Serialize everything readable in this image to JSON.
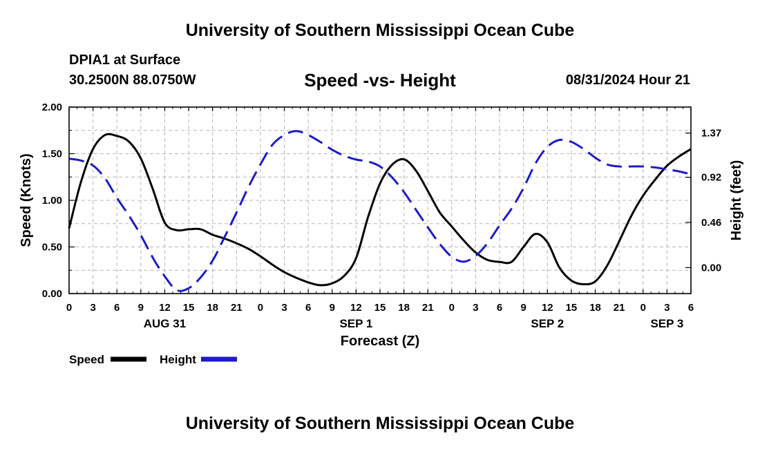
{
  "header": {
    "title": "University of Southern Mississippi Ocean Cube",
    "station": "DPIA1 at Surface",
    "coords": "30.2500N  88.0750W",
    "chart_title": "Speed -vs- Height",
    "datetime": "08/31/2024 Hour 21",
    "footer_title": "University of Southern Mississippi Ocean Cube"
  },
  "colors": {
    "speed": "#000000",
    "height": "#1c1cc8",
    "grid": "#b4b4b4"
  },
  "chart_data": {
    "type": "line",
    "title": "Speed -vs- Height",
    "xlabel": "Forecast (Z)",
    "ylabel": "Speed (Knots)",
    "y2label": "Height (feet)",
    "x_range": [
      0,
      78
    ],
    "ylim": [
      0,
      2.0
    ],
    "y2lim": [
      -0.265,
      1.635
    ],
    "grid": true,
    "x_tick_values": [
      0,
      3,
      6,
      9,
      12,
      15,
      18,
      21,
      24,
      27,
      30,
      33,
      36,
      39,
      42,
      45,
      48,
      51,
      54,
      57,
      60,
      63,
      66,
      69,
      72,
      75,
      78
    ],
    "x_tick_labels": [
      "0",
      "3",
      "6",
      "9",
      "12",
      "15",
      "18",
      "21",
      "0",
      "3",
      "6",
      "9",
      "12",
      "15",
      "18",
      "21",
      "0",
      "3",
      "6",
      "9",
      "12",
      "15",
      "18",
      "21",
      "0",
      "3",
      "6"
    ],
    "date_labels": [
      {
        "x": 12,
        "label": "AUG 31"
      },
      {
        "x": 36,
        "label": "SEP 1"
      },
      {
        "x": 60,
        "label": "SEP 2"
      },
      {
        "x": 75,
        "label": "SEP 3"
      }
    ],
    "y_ticks": [
      {
        "value": 0,
        "label": "0.00"
      },
      {
        "value": 0.5,
        "label": "0.50"
      },
      {
        "value": 1.0,
        "label": "1.00"
      },
      {
        "value": 1.5,
        "label": "1.50"
      },
      {
        "value": 2.0,
        "label": "2.00"
      }
    ],
    "y2_ticks": [
      {
        "value": 0.0,
        "label": "0.00"
      },
      {
        "value": 0.46,
        "label": "0.46"
      },
      {
        "value": 0.92,
        "label": "0.92"
      },
      {
        "value": 1.37,
        "label": "1.37"
      }
    ],
    "legend": [
      {
        "label": "Speed",
        "series": "speed"
      },
      {
        "label": "Height",
        "series": "height"
      }
    ],
    "series": [
      {
        "name": "Speed",
        "axis": "left",
        "style": "solid",
        "x": [
          0,
          1.5,
          3,
          4.5,
          6,
          7.5,
          9,
          10.5,
          12,
          13.5,
          15,
          16.5,
          18,
          19.5,
          21,
          22.5,
          24,
          25.5,
          27,
          28.5,
          30,
          31.5,
          33,
          34.5,
          36,
          37.5,
          39,
          40.5,
          42,
          43.5,
          45,
          46.5,
          48,
          49.5,
          51,
          52.5,
          54,
          55.5,
          57,
          58.5,
          60,
          61.5,
          63,
          64.5,
          66,
          67.5,
          69,
          70.5,
          72,
          73.5,
          75,
          76.5,
          78
        ],
        "values": [
          0.7,
          1.2,
          1.55,
          1.7,
          1.69,
          1.63,
          1.45,
          1.12,
          0.76,
          0.68,
          0.69,
          0.69,
          0.63,
          0.59,
          0.54,
          0.48,
          0.4,
          0.31,
          0.23,
          0.17,
          0.12,
          0.09,
          0.11,
          0.19,
          0.38,
          0.82,
          1.18,
          1.38,
          1.44,
          1.32,
          1.1,
          0.87,
          0.72,
          0.57,
          0.44,
          0.36,
          0.34,
          0.34,
          0.5,
          0.64,
          0.55,
          0.28,
          0.14,
          0.1,
          0.13,
          0.3,
          0.56,
          0.83,
          1.05,
          1.22,
          1.37,
          1.47,
          1.55
        ]
      },
      {
        "name": "Height",
        "axis": "right",
        "style": "dashed",
        "x": [
          0,
          1.5,
          3,
          4.5,
          6,
          7.5,
          9,
          10.5,
          12,
          13.5,
          15,
          16.5,
          18,
          19.5,
          21,
          22.5,
          24,
          25.5,
          27,
          28.5,
          30,
          31.5,
          33,
          34.5,
          36,
          37.5,
          39,
          40.5,
          42,
          43.5,
          45,
          46.5,
          48,
          49.5,
          51,
          52.5,
          54,
          55.5,
          57,
          58.5,
          60,
          61.5,
          63,
          64.5,
          66,
          67.5,
          69,
          70.5,
          72,
          73.5,
          75,
          76.5,
          78
        ],
        "values": [
          1.11,
          1.09,
          1.04,
          0.91,
          0.71,
          0.53,
          0.33,
          0.1,
          -0.09,
          -0.23,
          -0.21,
          -0.1,
          0.07,
          0.31,
          0.56,
          0.82,
          1.05,
          1.25,
          1.35,
          1.39,
          1.35,
          1.28,
          1.2,
          1.14,
          1.1,
          1.08,
          1.03,
          0.92,
          0.77,
          0.59,
          0.41,
          0.24,
          0.11,
          0.06,
          0.12,
          0.25,
          0.43,
          0.6,
          0.81,
          1.06,
          1.23,
          1.3,
          1.28,
          1.21,
          1.12,
          1.05,
          1.03,
          1.03,
          1.03,
          1.02,
          1.0,
          0.98,
          0.95
        ]
      }
    ]
  }
}
